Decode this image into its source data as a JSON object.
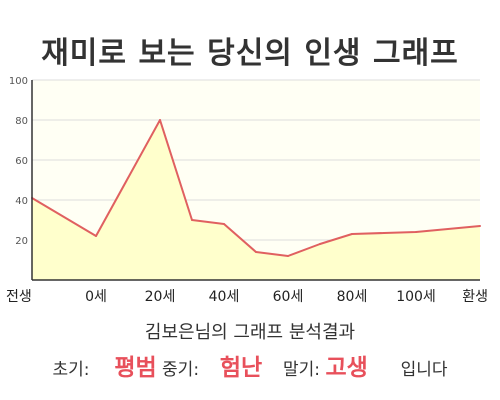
{
  "title": "재미로 보는 당신의 인생 그래프",
  "chart_data": {
    "type": "area",
    "categories": [
      "전생",
      "0세",
      "20세",
      "40세",
      "60세",
      "80세",
      "100세",
      "환생"
    ],
    "x": [
      -20,
      0,
      20,
      30,
      40,
      50,
      60,
      70,
      80,
      90,
      100,
      120
    ],
    "values": [
      41,
      22,
      80,
      30,
      28,
      14,
      12,
      18,
      23,
      23.5,
      24,
      27
    ],
    "ylim": [
      0,
      100
    ],
    "yticks": [
      20,
      40,
      60,
      80,
      100
    ],
    "grid": true,
    "colors": {
      "line": "#e06060",
      "fill": "#ffffcc",
      "plot_bg": "#fffff4",
      "grid": "#dddddd"
    }
  },
  "summary": "김보은님의 그래프 분석결과",
  "result": {
    "early_label": "초기:",
    "early_value": "평범",
    "middle_label": "중기:",
    "middle_value": "험난",
    "late_label": "말기:",
    "late_value": "고생",
    "suffix": "입니다"
  }
}
